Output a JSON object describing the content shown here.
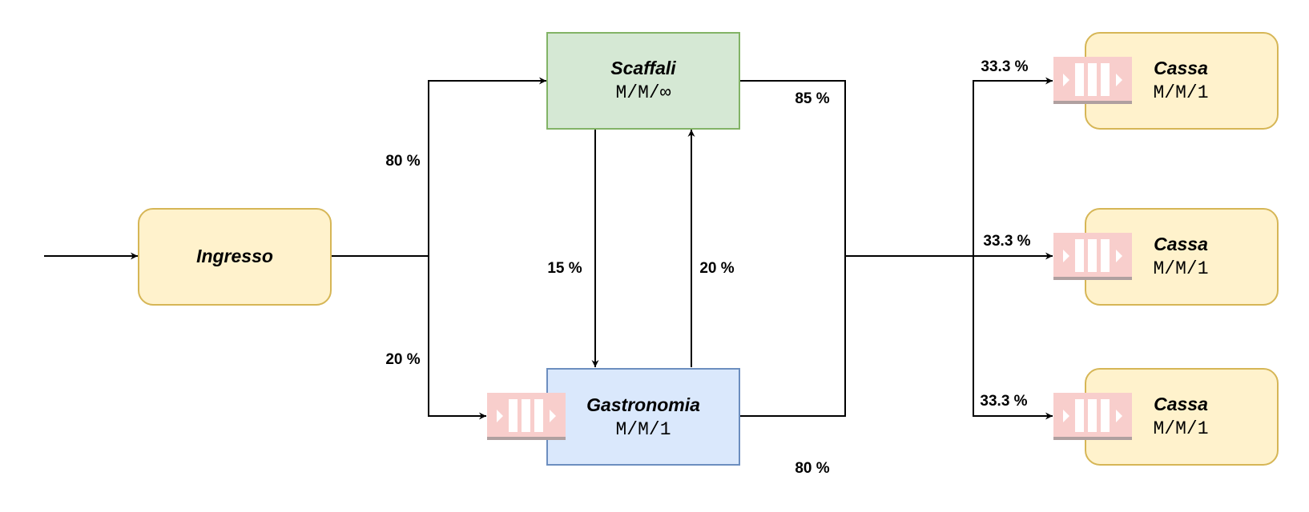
{
  "nodes": {
    "ingresso": {
      "title": "Ingresso",
      "fill": "#fff2cc",
      "stroke": "#d6b656"
    },
    "scaffali": {
      "title": "Scaffali",
      "sub": "M/M/∞",
      "fill": "#d5e8d4",
      "stroke": "#82b366"
    },
    "gastronomia": {
      "title": "Gastronomia",
      "sub": "M/M/1",
      "fill": "#dae8fc",
      "stroke": "#6c8ebf"
    },
    "casse": [
      {
        "title": "Cassa",
        "sub": "M/M/1"
      },
      {
        "title": "Cassa",
        "sub": "M/M/1"
      },
      {
        "title": "Cassa",
        "sub": "M/M/1"
      }
    ],
    "cassa_fill": "#fff2cc",
    "cassa_stroke": "#d6b656"
  },
  "queue_icon": {
    "name": "queue-icon",
    "fill": "#f8cecc",
    "bar": "#ffffff",
    "base": "#b0a0a0"
  },
  "edges": {
    "ingresso_to_scaffali": "80 %",
    "ingresso_to_gastronomia": "20 %",
    "scaffali_to_gastronomia": "15 %",
    "gastronomia_to_scaffali": "20 %",
    "scaffali_to_casse": "85 %",
    "gastronomia_to_casse": "80 %",
    "to_cassa": [
      "33.3 %",
      "33.3 %",
      "33.3 %"
    ]
  }
}
